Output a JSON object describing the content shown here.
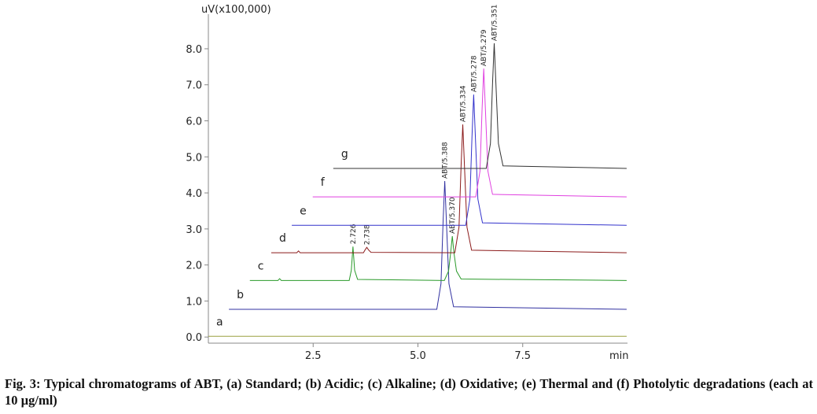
{
  "chart_data": {
    "type": "chromatogram",
    "y_label": "uV(x100,000)",
    "x_label": "min",
    "xlim": [
      0,
      10
    ],
    "ylim": [
      -0.17,
      8.96
    ],
    "xticks": [
      {
        "value": 2.5,
        "label": "2.5"
      },
      {
        "value": 5,
        "label": "5.0"
      },
      {
        "value": 7.5,
        "label": "7.5"
      }
    ],
    "yticks": [
      {
        "value": 0,
        "label": "0.0"
      },
      {
        "value": 1,
        "label": "1.0"
      },
      {
        "value": 2,
        "label": "2.0"
      },
      {
        "value": 3,
        "label": "3.0"
      },
      {
        "value": 4,
        "label": "4.0"
      },
      {
        "value": 5,
        "label": "5.0"
      },
      {
        "value": 6,
        "label": "6.0"
      },
      {
        "value": 7,
        "label": "7.0"
      },
      {
        "value": 8,
        "label": "8.0"
      }
    ],
    "series": [
      {
        "name": "a",
        "color": "#9aa040",
        "x": [
          0,
          9.98
        ],
        "values": [
          0.02,
          0.02
        ],
        "peak_labels": []
      },
      {
        "name": "b",
        "color": "#3030a0",
        "x": [
          0.49,
          5.45,
          5.55,
          5.6,
          5.64,
          5.68,
          5.74,
          5.85,
          9.98
        ],
        "values": [
          0.77,
          0.77,
          1.48,
          3.19,
          4.33,
          3.19,
          1.48,
          0.84,
          0.77
        ],
        "peak_labels": [
          "ABT/5.388"
        ]
      },
      {
        "name": "c",
        "color": "#2a9a2a",
        "x": [
          0.99,
          1.66,
          1.7,
          1.74,
          3.36,
          3.41,
          3.45,
          3.49,
          3.56,
          5.63,
          5.73,
          5.78,
          5.82,
          5.86,
          5.92,
          6.03,
          9.98
        ],
        "values": [
          1.57,
          1.57,
          1.62,
          1.57,
          1.57,
          1.85,
          2.51,
          1.85,
          1.6,
          1.57,
          1.83,
          2.33,
          2.8,
          2.33,
          1.83,
          1.61,
          1.57
        ],
        "peak_labels": [
          "2.726",
          "ABT/5.370"
        ]
      },
      {
        "name": "d",
        "color": "#8b1a1a",
        "x": [
          1.5,
          2.11,
          2.15,
          2.19,
          3.7,
          3.74,
          3.78,
          3.82,
          3.88,
          5.88,
          5.98,
          6.03,
          6.07,
          6.11,
          6.17,
          6.28,
          9.98
        ],
        "values": [
          2.34,
          2.34,
          2.39,
          2.34,
          2.34,
          2.42,
          2.49,
          2.42,
          2.35,
          2.34,
          3.05,
          4.76,
          5.9,
          4.76,
          3.05,
          2.41,
          2.34
        ],
        "peak_labels": [
          "2.738",
          "ABT/5.334"
        ]
      },
      {
        "name": "e",
        "color": "#3333cc",
        "x": [
          1.99,
          6.14,
          6.24,
          6.29,
          6.33,
          6.37,
          6.43,
          6.54,
          9.98
        ],
        "values": [
          3.1,
          3.1,
          3.83,
          5.57,
          6.73,
          5.57,
          3.83,
          3.17,
          3.1
        ],
        "peak_labels": [
          "ABT/5.278"
        ]
      },
      {
        "name": "f",
        "color": "#e040e0",
        "x": [
          2.49,
          6.38,
          6.48,
          6.53,
          6.57,
          6.61,
          6.67,
          6.78,
          9.98
        ],
        "values": [
          3.89,
          3.89,
          4.6,
          6.31,
          7.45,
          6.31,
          4.6,
          3.96,
          3.89
        ],
        "peak_labels": [
          "ABT/5.279"
        ]
      },
      {
        "name": "g",
        "color": "#333333",
        "x": [
          2.98,
          6.63,
          6.73,
          6.78,
          6.82,
          6.86,
          6.92,
          7.03,
          9.98
        ],
        "values": [
          4.68,
          4.68,
          5.37,
          7.04,
          8.15,
          7.04,
          5.37,
          4.75,
          4.68
        ],
        "peak_labels": [
          "ABT/5.351"
        ]
      }
    ]
  },
  "caption": "Fig. 3: Typical chromatograms of ABT, (a) Standard; (b) Acidic; (c) Alkaline; (d) Oxidative; (e) Thermal and (f) Photolytic degradations (each at 10 µg/ml)"
}
